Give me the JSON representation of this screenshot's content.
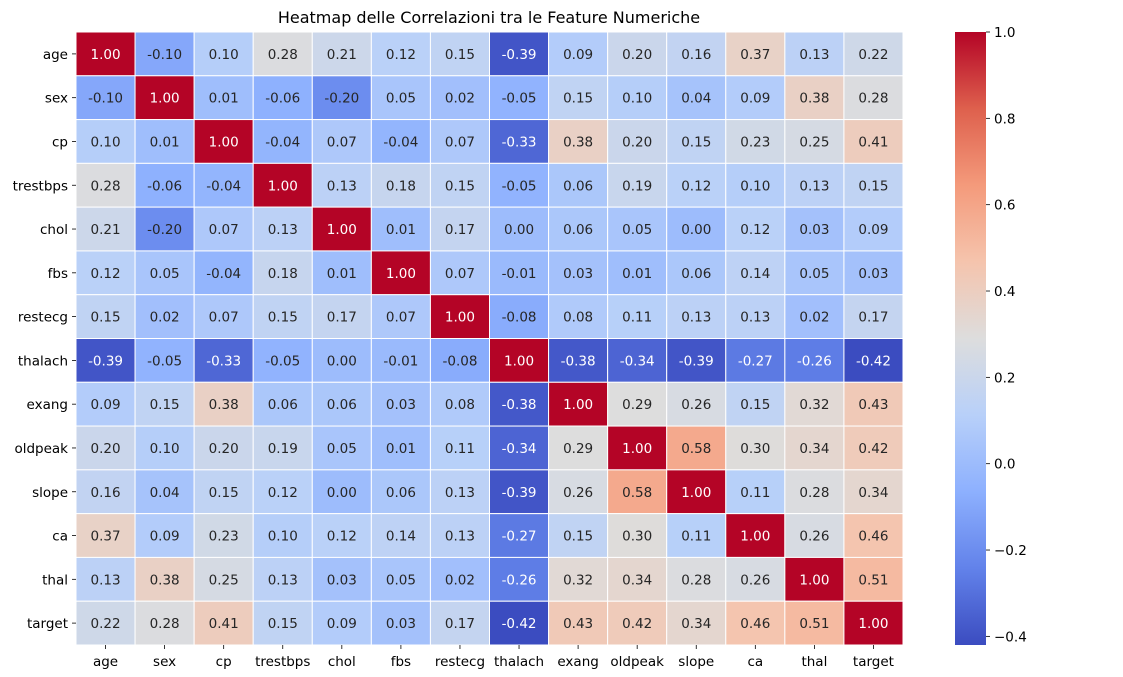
{
  "chart_data": {
    "type": "heatmap",
    "title": "Heatmap delle Correlazioni tra le Feature Numeriche",
    "xlabel": "",
    "ylabel": "",
    "labels": [
      "age",
      "sex",
      "cp",
      "trestbps",
      "chol",
      "fbs",
      "restecg",
      "thalach",
      "exang",
      "oldpeak",
      "slope",
      "ca",
      "thal",
      "target"
    ],
    "matrix": [
      [
        1.0,
        -0.1,
        0.1,
        0.28,
        0.21,
        0.12,
        0.15,
        -0.39,
        0.09,
        0.2,
        0.16,
        0.37,
        0.13,
        0.22
      ],
      [
        -0.1,
        1.0,
        0.01,
        -0.06,
        -0.2,
        0.05,
        0.02,
        -0.05,
        0.15,
        0.1,
        0.04,
        0.09,
        0.38,
        0.28
      ],
      [
        0.1,
        0.01,
        1.0,
        -0.04,
        0.07,
        -0.04,
        0.07,
        -0.33,
        0.38,
        0.2,
        0.15,
        0.23,
        0.25,
        0.41
      ],
      [
        0.28,
        -0.06,
        -0.04,
        1.0,
        0.13,
        0.18,
        0.15,
        -0.05,
        0.06,
        0.19,
        0.12,
        0.1,
        0.13,
        0.15
      ],
      [
        0.21,
        -0.2,
        0.07,
        0.13,
        1.0,
        0.01,
        0.17,
        -0.0,
        0.06,
        0.05,
        -0.0,
        0.12,
        0.03,
        0.09
      ],
      [
        0.12,
        0.05,
        -0.04,
        0.18,
        0.01,
        1.0,
        0.07,
        -0.01,
        0.03,
        0.01,
        0.06,
        0.14,
        0.05,
        0.03
      ],
      [
        0.15,
        0.02,
        0.07,
        0.15,
        0.17,
        0.07,
        1.0,
        -0.08,
        0.08,
        0.11,
        0.13,
        0.13,
        0.02,
        0.17
      ],
      [
        -0.39,
        -0.05,
        -0.33,
        -0.05,
        -0.0,
        -0.01,
        -0.08,
        1.0,
        -0.38,
        -0.34,
        -0.39,
        -0.27,
        -0.26,
        -0.42
      ],
      [
        0.09,
        0.15,
        0.38,
        0.06,
        0.06,
        0.03,
        0.08,
        -0.38,
        1.0,
        0.29,
        0.26,
        0.15,
        0.32,
        0.43
      ],
      [
        0.2,
        0.1,
        0.2,
        0.19,
        0.05,
        0.01,
        0.11,
        -0.34,
        0.29,
        1.0,
        0.58,
        0.3,
        0.34,
        0.42
      ],
      [
        0.16,
        0.04,
        0.15,
        0.12,
        -0.0,
        0.06,
        0.13,
        -0.39,
        0.26,
        0.58,
        1.0,
        0.11,
        0.28,
        0.34
      ],
      [
        0.37,
        0.09,
        0.23,
        0.1,
        0.12,
        0.14,
        0.13,
        -0.27,
        0.15,
        0.3,
        0.11,
        1.0,
        0.26,
        0.46
      ],
      [
        0.13,
        0.38,
        0.25,
        0.13,
        0.03,
        0.05,
        0.02,
        -0.26,
        0.32,
        0.34,
        0.28,
        0.26,
        1.0,
        0.51
      ],
      [
        0.22,
        0.28,
        0.41,
        0.15,
        0.09,
        0.03,
        0.17,
        -0.42,
        0.43,
        0.42,
        0.34,
        0.46,
        0.51,
        1.0
      ]
    ],
    "value_format": "0.00",
    "colormap": "coolwarm",
    "colorbar": {
      "range": [
        -0.42,
        1.0
      ],
      "ticks": [
        -0.4,
        -0.2,
        0.0,
        0.2,
        0.4,
        0.6,
        0.8,
        1.0
      ],
      "tick_labels": [
        "−0.4",
        "−0.2",
        "0.0",
        "0.2",
        "0.4",
        "0.6",
        "0.8",
        "1.0"
      ]
    },
    "grid": false,
    "legend": "colorbar-right"
  }
}
